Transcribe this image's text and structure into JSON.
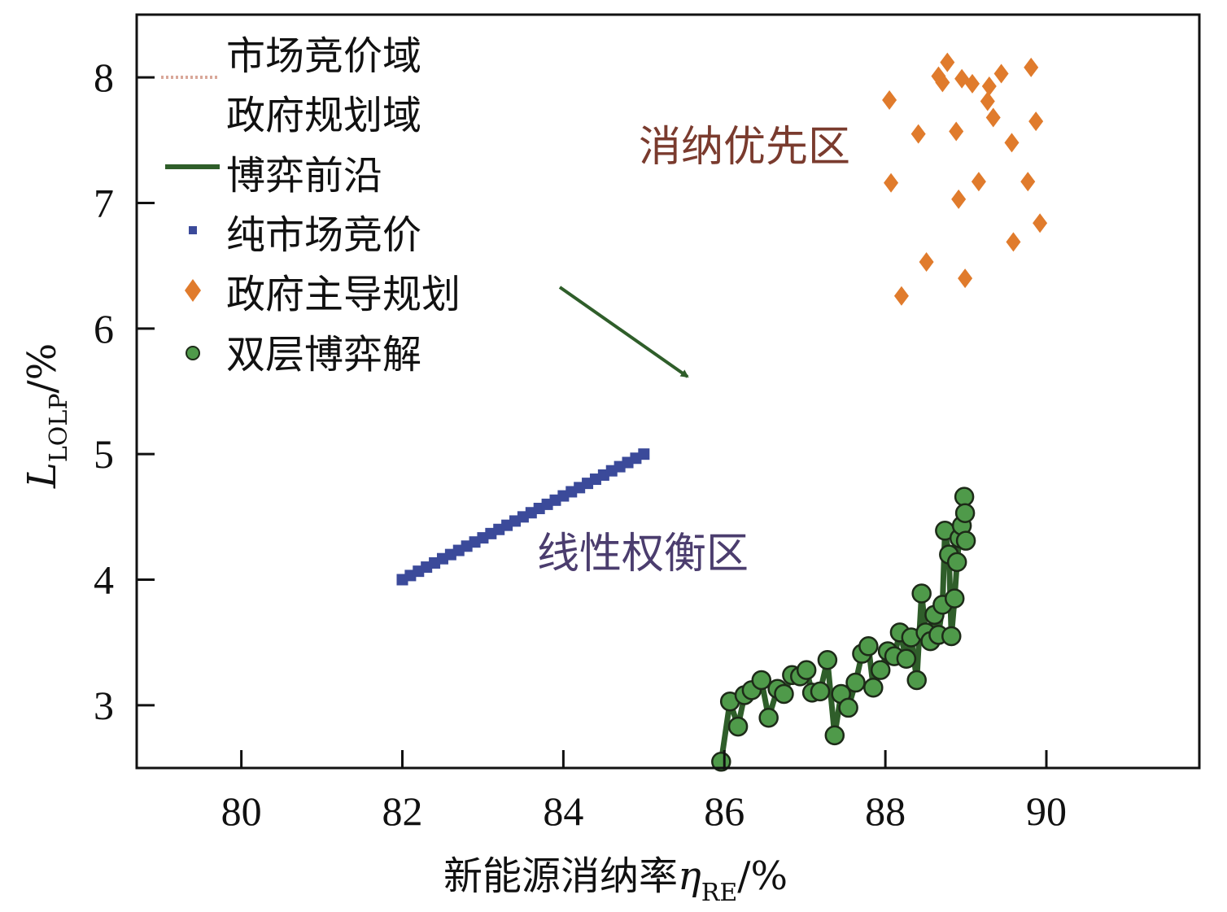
{
  "chart_data": {
    "type": "scatter",
    "xlabel": "新能源消纳率",
    "xlabel_symbol": "η",
    "xlabel_sub": "RE",
    "xlabel_unit": "/%",
    "ylabel_symbol": "L",
    "ylabel_sub": "LOLP",
    "ylabel_unit": "/%",
    "xlim": [
      78.7,
      91.9
    ],
    "ylim": [
      2.5,
      8.5
    ],
    "xticks": [
      80,
      82,
      84,
      86,
      88,
      90
    ],
    "yticks": [
      3,
      4,
      5,
      6,
      7,
      8
    ],
    "grid": false,
    "legend_position": "top-left",
    "legend": [
      {
        "label": "市场竞价域",
        "marker": "dotted-line",
        "color": "#d9a89a"
      },
      {
        "label": "政府规划域",
        "marker": "none",
        "color": "#ffffff"
      },
      {
        "label": "博弈前沿",
        "marker": "line",
        "color": "#2f5e2a"
      },
      {
        "label": "纯市场竞价",
        "marker": "square",
        "color": "#3b4a9a"
      },
      {
        "label": "政府主导规划",
        "marker": "diamond",
        "color": "#e07b2c"
      },
      {
        "label": "双层博弈解",
        "marker": "circle",
        "color": "#4f9a4a"
      }
    ],
    "annotations": [
      {
        "text": "消纳优先区",
        "color": "#7a3b2e"
      },
      {
        "text": "线性权衡区",
        "color": "#4b3d6e"
      }
    ],
    "arrow_color": "#2f5e2a",
    "series": [
      {
        "name": "纯市场竞价",
        "type": "square",
        "color": "#3b4a9a",
        "x": [
          82.0,
          82.1,
          82.2,
          82.3,
          82.4,
          82.5,
          82.6,
          82.7,
          82.8,
          82.9,
          83.0,
          83.1,
          83.2,
          83.3,
          83.4,
          83.5,
          83.6,
          83.7,
          83.8,
          83.9,
          84.0,
          84.1,
          84.2,
          84.3,
          84.4,
          84.5,
          84.6,
          84.7,
          84.8,
          84.9,
          85.0
        ],
        "y": [
          4.0,
          4.033,
          4.067,
          4.1,
          4.133,
          4.167,
          4.2,
          4.233,
          4.267,
          4.3,
          4.333,
          4.367,
          4.4,
          4.433,
          4.467,
          4.5,
          4.533,
          4.567,
          4.6,
          4.633,
          4.667,
          4.7,
          4.733,
          4.767,
          4.8,
          4.833,
          4.867,
          4.9,
          4.933,
          4.967,
          5.0
        ]
      },
      {
        "name": "政府主导规划",
        "type": "diamond",
        "color": "#e07b2c",
        "x": [
          88.05,
          88.77,
          88.66,
          88.71,
          88.95,
          89.08,
          89.44,
          89.81,
          89.29,
          89.27,
          89.34,
          88.41,
          88.88,
          89.87,
          89.57,
          88.07,
          89.16,
          89.77,
          88.91,
          89.92,
          89.59,
          88.51,
          88.99,
          88.2
        ],
        "y": [
          7.82,
          8.12,
          8.01,
          7.96,
          7.99,
          7.95,
          8.03,
          8.08,
          7.93,
          7.81,
          7.68,
          7.55,
          7.57,
          7.65,
          7.48,
          7.16,
          7.17,
          7.17,
          7.03,
          6.84,
          6.69,
          6.53,
          6.4,
          6.26
        ]
      },
      {
        "name": "双层博弈解",
        "type": "circle",
        "color": "#4f9a4a",
        "line_color": "#2f5e2a",
        "x": [
          85.96,
          86.07,
          86.17,
          86.25,
          86.34,
          86.46,
          86.55,
          86.66,
          86.74,
          86.84,
          86.94,
          87.02,
          87.09,
          87.19,
          87.28,
          87.37,
          87.45,
          87.54,
          87.63,
          87.71,
          87.79,
          87.85,
          87.94,
          88.03,
          88.11,
          88.18,
          88.26,
          88.32,
          88.39,
          88.45,
          88.5,
          88.56,
          88.61,
          88.66,
          88.71,
          88.74,
          88.79,
          88.82,
          88.86,
          88.89,
          88.92,
          88.95,
          88.98,
          88.99,
          89.0
        ],
        "y": [
          2.55,
          3.03,
          2.83,
          3.08,
          3.12,
          3.2,
          2.9,
          3.13,
          3.09,
          3.24,
          3.23,
          3.28,
          3.1,
          3.11,
          3.36,
          2.76,
          3.09,
          2.98,
          3.18,
          3.41,
          3.47,
          3.14,
          3.28,
          3.43,
          3.39,
          3.58,
          3.37,
          3.54,
          3.2,
          3.89,
          3.58,
          3.51,
          3.72,
          3.56,
          3.8,
          4.39,
          4.2,
          3.55,
          3.85,
          4.14,
          4.33,
          4.43,
          4.66,
          4.53,
          4.31
        ]
      }
    ]
  }
}
